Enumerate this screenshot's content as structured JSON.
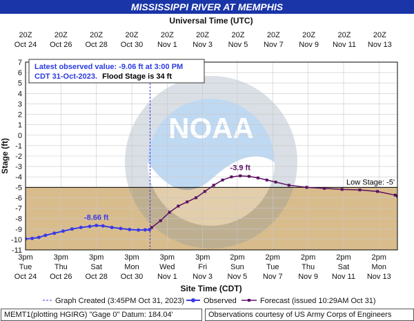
{
  "title": "MISSISSIPPI RIVER AT MEMPHIS",
  "top_axis_title": "Universal Time (UTC)",
  "bottom_axis_title": "Site Time (CDT)",
  "y_axis_title": "Stage (ft)",
  "annotation": {
    "line1": "Latest observed value: -9.06 ft at 3:00 PM",
    "line2": "CDT 31-Oct-2023.",
    "line3": "Flood Stage is 34 ft"
  },
  "legend": {
    "created": "Graph Created (3:45PM Oct 31, 2023)",
    "observed": "Observed",
    "forecast": "Forecast (issued 10:29AM Oct 31)"
  },
  "footer": {
    "left": "MEMT1(plotting HGIRG) \"Gage 0\" Datum: 184.04'",
    "right": "Observations courtesy of US Army Corps of Engineers"
  },
  "colors": {
    "title_bg": "#1a35a8",
    "observed": "#3a3ae6",
    "forecast": "#5a1060",
    "below_low_stage_fill": "#d9bc8c",
    "plot_bg": "#ffffff"
  },
  "chart_data": {
    "type": "line",
    "ylabel": "Stage (ft)",
    "xlabel": "Site Time (CDT)",
    "ylim": [
      -11,
      7
    ],
    "y_ticks": [
      7,
      6,
      5,
      4,
      3,
      2,
      1,
      0,
      -1,
      -2,
      -3,
      -4,
      -5,
      -6,
      -7,
      -8,
      -9,
      -10,
      -11
    ],
    "grid": true,
    "x_range_days": [
      "2023-10-24 15:00",
      "2023-11-14 15:00"
    ],
    "bottom_ticks": [
      {
        "t": "2023-10-24 15:00",
        "l1": "3pm",
        "l2": "Tue",
        "l3": "Oct 24"
      },
      {
        "t": "2023-10-26 15:00",
        "l1": "3pm",
        "l2": "Thu",
        "l3": "Oct 26"
      },
      {
        "t": "2023-10-28 15:00",
        "l1": "3pm",
        "l2": "Sat",
        "l3": "Oct 28"
      },
      {
        "t": "2023-10-30 15:00",
        "l1": "3pm",
        "l2": "Mon",
        "l3": "Oct 30"
      },
      {
        "t": "2023-11-01 15:00",
        "l1": "3pm",
        "l2": "Wed",
        "l3": "Nov 1"
      },
      {
        "t": "2023-11-03 15:00",
        "l1": "3pm",
        "l2": "Fri",
        "l3": "Nov 3"
      },
      {
        "t": "2023-11-05 14:00",
        "l1": "2pm",
        "l2": "Sun",
        "l3": "Nov 5"
      },
      {
        "t": "2023-11-07 14:00",
        "l1": "2pm",
        "l2": "Tue",
        "l3": "Nov 7"
      },
      {
        "t": "2023-11-09 14:00",
        "l1": "2pm",
        "l2": "Thu",
        "l3": "Nov 9"
      },
      {
        "t": "2023-11-11 14:00",
        "l1": "2pm",
        "l2": "Sat",
        "l3": "Nov 11"
      },
      {
        "t": "2023-11-13 14:00",
        "l1": "2pm",
        "l2": "Mon",
        "l3": "Nov 13"
      }
    ],
    "top_ticks": [
      {
        "l1": "20Z",
        "l2": "Oct 24"
      },
      {
        "l1": "20Z",
        "l2": "Oct 26"
      },
      {
        "l1": "20Z",
        "l2": "Oct 28"
      },
      {
        "l1": "20Z",
        "l2": "Oct 30"
      },
      {
        "l1": "20Z",
        "l2": "Nov 1"
      },
      {
        "l1": "20Z",
        "l2": "Nov 3"
      },
      {
        "l1": "20Z",
        "l2": "Nov 5"
      },
      {
        "l1": "20Z",
        "l2": "Nov 7"
      },
      {
        "l1": "20Z",
        "l2": "Nov 9"
      },
      {
        "l1": "20Z",
        "l2": "Nov 11"
      },
      {
        "l1": "20Z",
        "l2": "Nov 13"
      }
    ],
    "low_stage": {
      "value": -5,
      "label": "Low Stage: -5'"
    },
    "graph_created": "2023-10-31 15:45",
    "series": [
      {
        "name": "Observed",
        "points": [
          [
            "2023-10-24 15:00",
            -9.95
          ],
          [
            "2023-10-25 00:00",
            -9.9
          ],
          [
            "2023-10-25 09:00",
            -9.8
          ],
          [
            "2023-10-25 18:00",
            -9.6
          ],
          [
            "2023-10-26 06:00",
            -9.4
          ],
          [
            "2023-10-26 18:00",
            -9.2
          ],
          [
            "2023-10-27 06:00",
            -9.0
          ],
          [
            "2023-10-27 18:00",
            -8.85
          ],
          [
            "2023-10-28 06:00",
            -8.75
          ],
          [
            "2023-10-28 15:00",
            -8.66
          ],
          [
            "2023-10-29 00:00",
            -8.7
          ],
          [
            "2023-10-29 12:00",
            -8.85
          ],
          [
            "2023-10-30 00:00",
            -8.95
          ],
          [
            "2023-10-30 12:00",
            -9.05
          ],
          [
            "2023-10-31 00:00",
            -9.1
          ],
          [
            "2023-10-31 09:00",
            -9.08
          ],
          [
            "2023-10-31 15:00",
            -9.06
          ]
        ],
        "peak_label": {
          "text": "-8.66 ft",
          "t": "2023-10-28 15:00",
          "v": -8.66
        }
      },
      {
        "name": "Forecast (issued 10:29AM Oct 31)",
        "points": [
          [
            "2023-10-31 18:00",
            -8.85
          ],
          [
            "2023-11-01 06:00",
            -8.2
          ],
          [
            "2023-11-01 18:00",
            -7.4
          ],
          [
            "2023-11-02 06:00",
            -6.8
          ],
          [
            "2023-11-02 18:00",
            -6.4
          ],
          [
            "2023-11-03 06:00",
            -6.0
          ],
          [
            "2023-11-03 18:00",
            -5.4
          ],
          [
            "2023-11-04 06:00",
            -4.8
          ],
          [
            "2023-11-04 18:00",
            -4.3
          ],
          [
            "2023-11-05 06:00",
            -4.0
          ],
          [
            "2023-11-05 18:00",
            -3.9
          ],
          [
            "2023-11-06 06:00",
            -3.95
          ],
          [
            "2023-11-06 18:00",
            -4.1
          ],
          [
            "2023-11-07 06:00",
            -4.3
          ],
          [
            "2023-11-07 18:00",
            -4.5
          ],
          [
            "2023-11-08 12:00",
            -4.8
          ],
          [
            "2023-11-09 12:00",
            -5.0
          ],
          [
            "2023-11-10 12:00",
            -5.1
          ],
          [
            "2023-11-11 12:00",
            -5.2
          ],
          [
            "2023-11-12 12:00",
            -5.25
          ],
          [
            "2023-11-13 12:00",
            -5.4
          ],
          [
            "2023-11-14 12:00",
            -5.75
          ],
          [
            "2023-11-14 15:00",
            -5.85
          ]
        ],
        "peak_label": {
          "text": "-3.9 ft",
          "t": "2023-11-05 18:00",
          "v": -3.9
        }
      }
    ]
  }
}
